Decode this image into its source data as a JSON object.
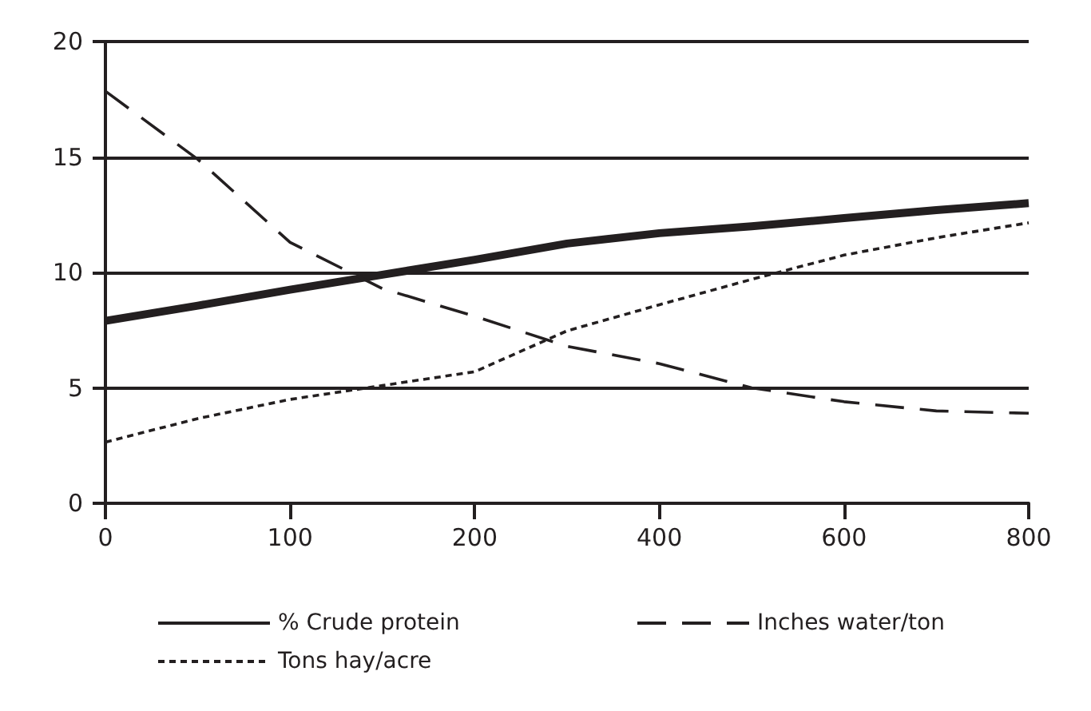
{
  "chart_data": {
    "type": "line",
    "categories": [
      "0",
      null,
      "100",
      null,
      "200",
      null,
      "400",
      null,
      "600",
      null,
      "800"
    ],
    "series": [
      {
        "name": "% Crude protein",
        "color": "#231f20",
        "line_style": "solid",
        "values": [
          7.9,
          8.56,
          9.25,
          9.9,
          10.55,
          11.25,
          11.7,
          12.0,
          12.35,
          12.7,
          13.0
        ]
      },
      {
        "name": "Inches water/ton",
        "color": "#231f20",
        "line_style": "dashed",
        "values": [
          17.85,
          14.9,
          11.3,
          9.3,
          8.1,
          6.8,
          6.05,
          5.0,
          4.4,
          4.0,
          3.9
        ]
      },
      {
        "name": "Tons hay/acre",
        "color": "#231f20",
        "line_style": "dotted",
        "values": [
          2.65,
          3.67,
          4.5,
          5.1,
          5.7,
          7.47,
          8.6,
          9.7,
          10.75,
          11.5,
          12.15
        ]
      }
    ],
    "ylim": [
      0,
      20
    ],
    "yticks": [
      0,
      5,
      10,
      15,
      20
    ],
    "grid": "y",
    "legend": "bottom",
    "marker": "none"
  }
}
